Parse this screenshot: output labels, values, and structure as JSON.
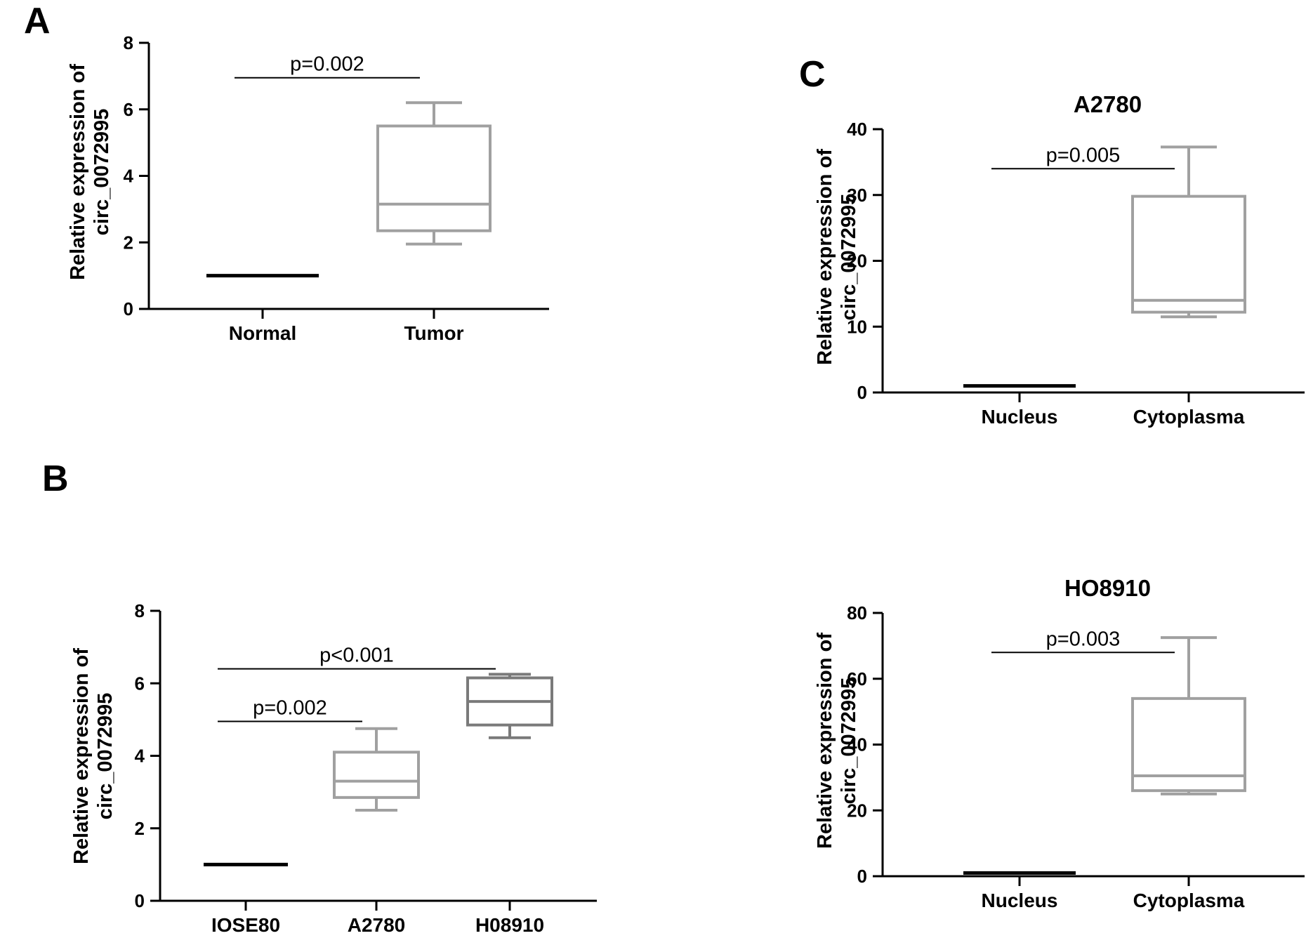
{
  "panels": {
    "A": {
      "letter": "A"
    },
    "B": {
      "letter": "B"
    },
    "C": {
      "letter": "C"
    }
  },
  "colors": {
    "normal": "#000000",
    "light_gray": "#a0a0a0",
    "dark_gray": "#7a7a7a",
    "axis": "#000000"
  },
  "chart_data": [
    {
      "id": "A",
      "type": "box",
      "title": "",
      "ylabel": [
        "Relative expression of",
        "circ_0072995"
      ],
      "ylim": [
        0,
        8
      ],
      "yticks": [
        0,
        2,
        4,
        6,
        8
      ],
      "categories": [
        "Normal",
        "Tumor"
      ],
      "boxes": [
        {
          "category": "Normal",
          "min": 1,
          "q1": 1,
          "median": 1,
          "q3": 1,
          "max": 1,
          "color": "#000000"
        },
        {
          "category": "Tumor",
          "min": 1.95,
          "q1": 2.35,
          "median": 3.15,
          "q3": 5.5,
          "max": 6.2,
          "color": "#a0a0a0"
        }
      ],
      "comparisons": [
        {
          "from": 0,
          "to": 1,
          "y": 6.95,
          "label": "p=0.002"
        }
      ]
    },
    {
      "id": "B",
      "type": "box",
      "title": "",
      "ylabel": [
        "Relative expression of",
        "circ_0072995"
      ],
      "ylim": [
        0,
        8
      ],
      "yticks": [
        0,
        2,
        4,
        6,
        8
      ],
      "categories": [
        "IOSE80",
        "A2780",
        "H08910"
      ],
      "boxes": [
        {
          "category": "IOSE80",
          "min": 1,
          "q1": 1,
          "median": 1,
          "q3": 1,
          "max": 1,
          "color": "#000000"
        },
        {
          "category": "A2780",
          "min": 2.5,
          "q1": 2.85,
          "median": 3.3,
          "q3": 4.1,
          "max": 4.75,
          "color": "#a0a0a0"
        },
        {
          "category": "H08910",
          "min": 4.5,
          "q1": 4.85,
          "median": 5.5,
          "q3": 6.15,
          "max": 6.25,
          "color": "#7a7a7a"
        }
      ],
      "comparisons": [
        {
          "from": 0,
          "to": 1,
          "y": 4.95,
          "label": "p=0.002"
        },
        {
          "from": 0,
          "to": 2,
          "y": 6.4,
          "label": "p<0.001"
        }
      ]
    },
    {
      "id": "C1",
      "type": "box",
      "title": "A2780",
      "ylabel": [
        "Relative expression of",
        "circ_0072995"
      ],
      "ylim": [
        0,
        40
      ],
      "yticks": [
        0,
        10,
        20,
        30,
        40
      ],
      "categories": [
        "Nucleus",
        "Cytoplasma"
      ],
      "boxes": [
        {
          "category": "Nucleus",
          "min": 1,
          "q1": 1,
          "median": 1,
          "q3": 1,
          "max": 1,
          "color": "#000000"
        },
        {
          "category": "Cytoplasma",
          "min": 11.5,
          "q1": 12.2,
          "median": 14,
          "q3": 29.8,
          "max": 37.3,
          "color": "#a0a0a0"
        }
      ],
      "comparisons": [
        {
          "from": 0,
          "to": 1,
          "y": 34,
          "label": "p=0.005"
        }
      ]
    },
    {
      "id": "C2",
      "type": "box",
      "title": "HO8910",
      "ylabel": [
        "Relative expression of",
        "circ_0072995"
      ],
      "ylim": [
        0,
        80
      ],
      "yticks": [
        0,
        20,
        40,
        60,
        80
      ],
      "categories": [
        "Nucleus",
        "Cytoplasma"
      ],
      "boxes": [
        {
          "category": "Nucleus",
          "min": 1,
          "q1": 1,
          "median": 1,
          "q3": 1,
          "max": 1,
          "color": "#000000"
        },
        {
          "category": "Cytoplasma",
          "min": 25,
          "q1": 26,
          "median": 30.5,
          "q3": 54,
          "max": 72.5,
          "color": "#a0a0a0"
        }
      ],
      "comparisons": [
        {
          "from": 0,
          "to": 1,
          "y": 68,
          "label": "p=0.003"
        }
      ]
    }
  ]
}
